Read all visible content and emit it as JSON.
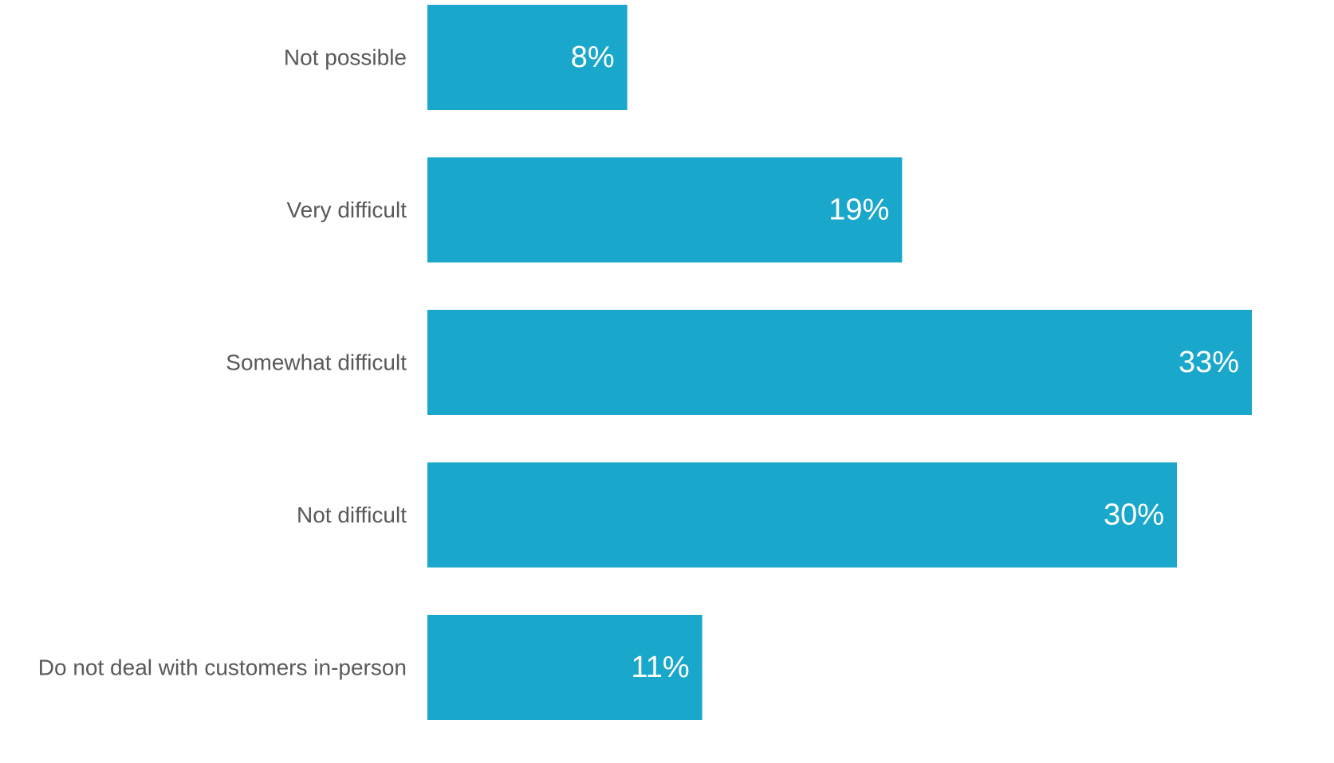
{
  "chart_data": {
    "type": "bar",
    "orientation": "horizontal",
    "title": "",
    "xlabel": "",
    "ylabel": "",
    "categories": [
      "Not possible",
      "Very difficult",
      "Somewhat difficult",
      "Not difficult",
      "Do not deal with customers in-person"
    ],
    "values": [
      8,
      19,
      33,
      30,
      11
    ],
    "data_labels": [
      "8%",
      "19%",
      "33%",
      "30%",
      "11%"
    ],
    "unit": "%",
    "xlim": [
      0,
      33
    ],
    "grid": false,
    "legend": "none",
    "colors": {
      "bar": "#19a7cb",
      "category_text": "#595959",
      "data_label_text": "#ffffff",
      "background": "#ffffff"
    }
  }
}
